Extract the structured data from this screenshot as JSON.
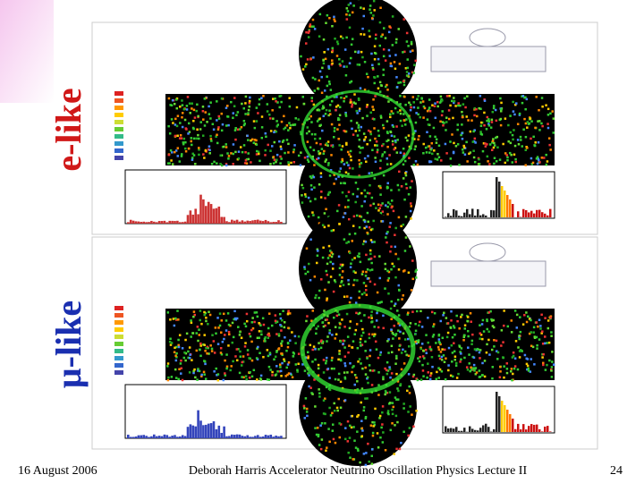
{
  "slide": {
    "labels": [
      "e-like",
      "μ-like"
    ],
    "footer": {
      "date": "16 August 2006",
      "text": "Deborah Harris  Accelerator Neutrino Oscillation Physics Lecture II",
      "page": "24"
    }
  }
}
